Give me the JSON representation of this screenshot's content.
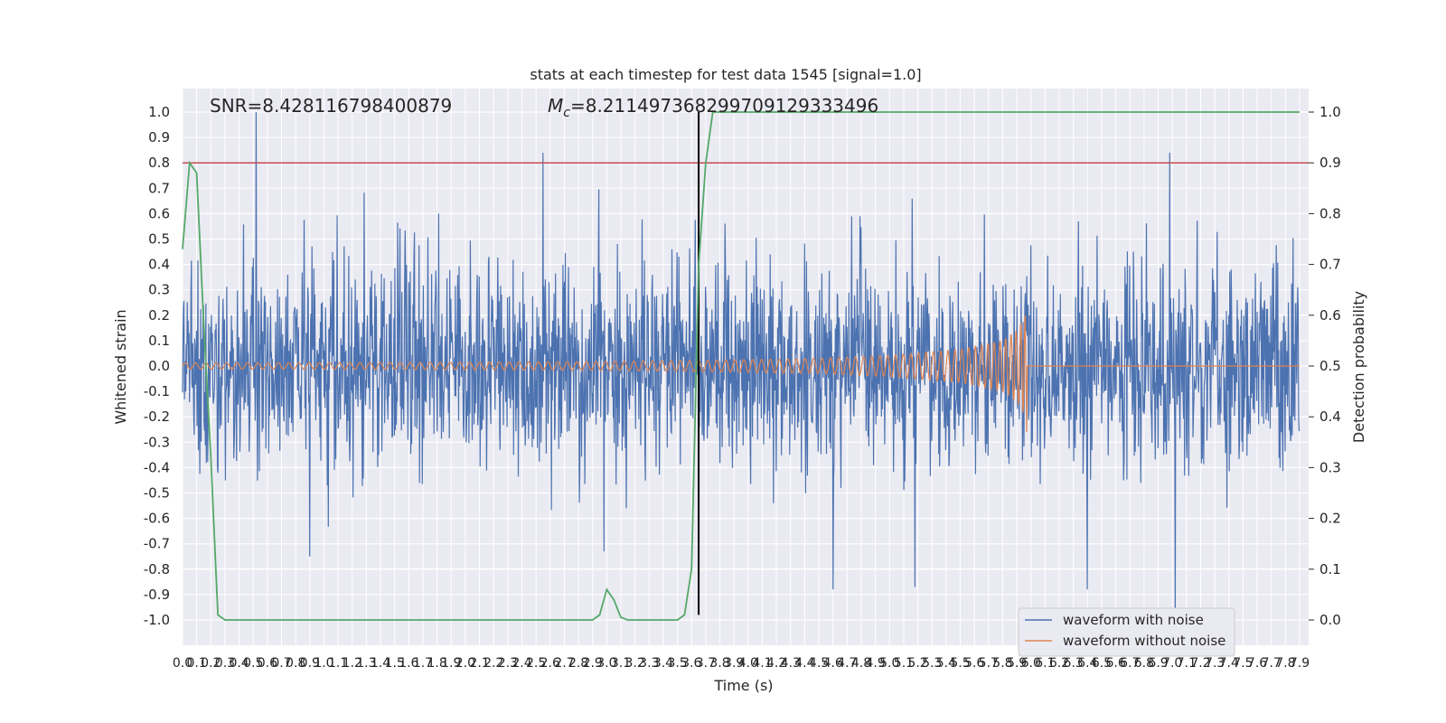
{
  "chart_data": {
    "type": "line",
    "title": "stats at each timestep for test data 1545 [signal=1.0]",
    "xlabel": "Time (s)",
    "ylabel_left": "Whitened strain",
    "ylabel_right": "Detection probability",
    "xlim": [
      0.0,
      7.9
    ],
    "ylim_left": [
      -1.08,
      1.1
    ],
    "ylim_right": [
      -0.04,
      1.04
    ],
    "x_ticks": [
      "0.0",
      "0.1",
      "0.2",
      "0.3",
      "0.4",
      "0.5",
      "0.6",
      "0.7",
      "0.8",
      "0.9",
      "1.0",
      "1.1",
      "1.2",
      "1.3",
      "1.4",
      "1.5",
      "1.6",
      "1.7",
      "1.8",
      "1.9",
      "2.0",
      "2.1",
      "2.2",
      "2.3",
      "2.4",
      "2.5",
      "2.6",
      "2.7",
      "2.8",
      "2.9",
      "3.0",
      "3.1",
      "3.2",
      "3.3",
      "3.4",
      "3.5",
      "3.6",
      "3.7",
      "3.8",
      "3.9",
      "4.0",
      "4.1",
      "4.2",
      "4.3",
      "4.4",
      "4.5",
      "4.6",
      "4.7",
      "4.8",
      "4.9",
      "5.0",
      "5.1",
      "5.2",
      "5.3",
      "5.4",
      "5.5",
      "5.6",
      "5.7",
      "5.8",
      "5.9",
      "6.0",
      "6.1",
      "6.2",
      "6.3",
      "6.4",
      "6.5",
      "6.6",
      "6.7",
      "6.8",
      "6.9",
      "7.0",
      "7.1",
      "7.2",
      "7.3",
      "7.4",
      "7.5",
      "7.6",
      "7.7",
      "7.8",
      "7.9"
    ],
    "y_ticks_left": [
      "1.0",
      "0.9",
      "0.8",
      "0.7",
      "0.6",
      "0.5",
      "0.4",
      "0.3",
      "0.2",
      "0.1",
      "0.0",
      "-0.1",
      "-0.2",
      "-0.3",
      "-0.4",
      "-0.5",
      "-0.6",
      "-0.7",
      "-0.8",
      "-0.9",
      "-1.0"
    ],
    "y_ticks_right": [
      "1.0",
      "0.9",
      "0.8",
      "0.7",
      "0.6",
      "0.5",
      "0.4",
      "0.3",
      "0.2",
      "0.1",
      "0.0"
    ],
    "grid": true,
    "legend_placement": "lower-right",
    "annotations": {
      "snr": "SNR=8.428116798400879",
      "mc": "=8.211497368299709129333496",
      "mc_symbol": "M",
      "mc_subscript": "c"
    },
    "threshold_line": {
      "y": 0.8,
      "color": "#c44e52"
    },
    "merger_line": {
      "x": 3.65,
      "y_from": -0.98,
      "y_to": 1.0,
      "color": "#000000"
    },
    "series": [
      {
        "name": "waveform with noise",
        "color": "#4c72b0",
        "description_of_noise": "dense random noise, typical amplitude +/-0.3, peak +1.0 near t=0.52 and -0.98 near t=7.02",
        "notable_peaks": [
          {
            "x": 0.52,
            "y": 1.0
          },
          {
            "x": 2.55,
            "y": 0.84
          },
          {
            "x": 6.98,
            "y": 0.84
          },
          {
            "x": 7.02,
            "y": -0.98
          },
          {
            "x": 4.6,
            "y": -0.88
          },
          {
            "x": 5.18,
            "y": -0.87
          },
          {
            "x": 6.4,
            "y": -0.88
          },
          {
            "x": 2.98,
            "y": -0.73
          },
          {
            "x": 0.9,
            "y": -0.75
          }
        ]
      },
      {
        "name": "waveform without noise",
        "color": "#dd8452",
        "description": "chirp signal growing in amplitude and frequency, ending at t~5.97",
        "envelope": [
          {
            "x": 0.0,
            "amp": 0.012
          },
          {
            "x": 1.0,
            "amp": 0.013
          },
          {
            "x": 2.0,
            "amp": 0.015
          },
          {
            "x": 3.0,
            "amp": 0.018
          },
          {
            "x": 3.65,
            "amp": 0.022
          },
          {
            "x": 4.5,
            "amp": 0.03
          },
          {
            "x": 5.0,
            "amp": 0.042
          },
          {
            "x": 5.5,
            "amp": 0.065
          },
          {
            "x": 5.8,
            "amp": 0.1
          },
          {
            "x": 5.9,
            "amp": 0.14
          },
          {
            "x": 5.96,
            "amp": 0.2
          },
          {
            "x": 5.97,
            "amp": 0.0
          }
        ]
      },
      {
        "name": "detection probability",
        "color": "#55a868",
        "axis": "right",
        "x": [
          0.0,
          0.05,
          0.1,
          0.15,
          0.2,
          0.25,
          0.3,
          2.9,
          2.95,
          3.0,
          3.05,
          3.1,
          3.15,
          3.5,
          3.55,
          3.6,
          3.65,
          3.7,
          3.75,
          7.9
        ],
        "y": [
          0.73,
          0.9,
          0.88,
          0.58,
          0.32,
          0.01,
          0.0,
          0.0,
          0.01,
          0.06,
          0.04,
          0.005,
          0.0,
          0.0,
          0.01,
          0.1,
          0.7,
          0.9,
          1.0,
          1.0
        ]
      }
    ]
  }
}
